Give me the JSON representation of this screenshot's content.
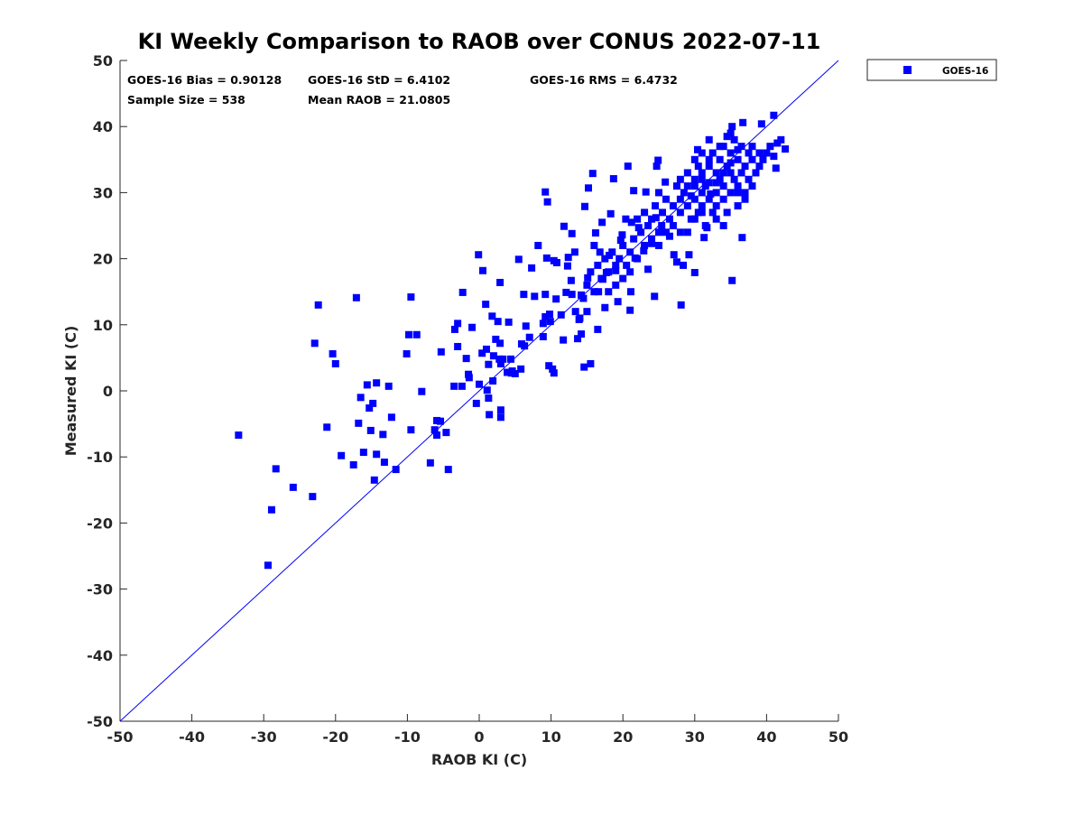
{
  "chart_data": {
    "type": "scatter",
    "title": "KI Weekly Comparison to RAOB over CONUS 2022-07-11",
    "xlabel": "RAOB KI (C)",
    "ylabel": "Measured KI (C)",
    "xlim": [
      -50,
      50
    ],
    "ylim": [
      -50,
      50
    ],
    "xticks": [
      -50,
      -40,
      -30,
      -20,
      -10,
      0,
      10,
      20,
      30,
      40,
      50
    ],
    "yticks": [
      -50,
      -40,
      -30,
      -20,
      -10,
      0,
      10,
      20,
      30,
      40,
      50
    ],
    "grid": false,
    "legend_position": "outside-top-right",
    "reference_line": "y = x",
    "colors": {
      "series": "#0000ff",
      "line": "#0000ff"
    },
    "stats": [
      "GOES-16 Bias = 0.90128",
      "GOES-16 StD = 6.4102",
      "GOES-16 RMS = 6.4732",
      "Sample Size = 538",
      "Mean RAOB = 21.0805"
    ],
    "series": [
      {
        "name": "GOES-16",
        "marker": "square",
        "points": [
          [
            -33.5,
            -6.7
          ],
          [
            -28.3,
            -11.8
          ],
          [
            -28.9,
            -18.0
          ],
          [
            -29.4,
            -26.4
          ],
          [
            -25.9,
            -14.6
          ],
          [
            -23.2,
            -16.0
          ],
          [
            -22.9,
            7.2
          ],
          [
            -22.4,
            13.0
          ],
          [
            -21.2,
            -5.5
          ],
          [
            -20.4,
            5.6
          ],
          [
            -20.0,
            4.1
          ],
          [
            -19.2,
            -9.8
          ],
          [
            -17.5,
            -11.2
          ],
          [
            -17.1,
            14.1
          ],
          [
            -16.8,
            -4.9
          ],
          [
            -16.5,
            -1.0
          ],
          [
            -16.1,
            -9.3
          ],
          [
            -15.6,
            0.9
          ],
          [
            -15.3,
            -2.6
          ],
          [
            -15.1,
            -6.0
          ],
          [
            -14.8,
            -1.9
          ],
          [
            -14.6,
            -13.5
          ],
          [
            -14.3,
            -9.6
          ],
          [
            -14.3,
            1.2
          ],
          [
            -13.4,
            -6.6
          ],
          [
            -13.2,
            -10.8
          ],
          [
            -12.6,
            0.7
          ],
          [
            -12.2,
            -4.0
          ],
          [
            -11.6,
            -11.9
          ],
          [
            -10.1,
            5.6
          ],
          [
            -9.8,
            8.5
          ],
          [
            -9.5,
            14.2
          ],
          [
            -9.5,
            -5.9
          ],
          [
            -8.7,
            8.5
          ],
          [
            -8.0,
            -0.1
          ],
          [
            -6.8,
            -10.9
          ],
          [
            -6.2,
            -5.9
          ],
          [
            -5.9,
            -6.7
          ],
          [
            -5.9,
            -4.5
          ],
          [
            -5.4,
            -4.6
          ],
          [
            -5.3,
            5.9
          ],
          [
            -4.6,
            -6.3
          ],
          [
            -4.3,
            -11.9
          ],
          [
            -3.5,
            0.7
          ],
          [
            -3.4,
            9.3
          ],
          [
            -3.0,
            10.2
          ],
          [
            -3.0,
            6.7
          ],
          [
            -2.4,
            0.7
          ],
          [
            -2.3,
            14.9
          ],
          [
            -1.8,
            4.9
          ],
          [
            -1.5,
            2.5
          ],
          [
            -1.4,
            2.0
          ],
          [
            -1.0,
            9.6
          ],
          [
            -0.4,
            -1.9
          ],
          [
            -0.1,
            20.6
          ],
          [
            0.0,
            1.0
          ],
          [
            0.4,
            5.7
          ],
          [
            0.5,
            18.2
          ],
          [
            0.9,
            13.1
          ],
          [
            1.0,
            6.3
          ],
          [
            1.1,
            0.1
          ],
          [
            1.3,
            4.0
          ],
          [
            1.3,
            -1.1
          ],
          [
            1.4,
            -3.6
          ],
          [
            1.8,
            11.3
          ],
          [
            1.9,
            1.5
          ],
          [
            2.0,
            5.3
          ],
          [
            2.3,
            7.8
          ],
          [
            2.6,
            10.5
          ],
          [
            2.8,
            4.8
          ],
          [
            2.9,
            16.4
          ],
          [
            2.9,
            7.2
          ],
          [
            3.0,
            4.1
          ],
          [
            3.0,
            -2.9
          ],
          [
            3.0,
            -4.0
          ],
          [
            3.3,
            4.8
          ],
          [
            3.9,
            2.8
          ],
          [
            4.1,
            10.4
          ],
          [
            4.5,
            2.7
          ],
          [
            4.4,
            4.8
          ],
          [
            4.6,
            3.0
          ],
          [
            5.0,
            2.6
          ],
          [
            5.5,
            19.9
          ],
          [
            5.8,
            3.3
          ],
          [
            5.9,
            7.1
          ],
          [
            6.2,
            14.6
          ],
          [
            6.3,
            6.8
          ],
          [
            6.5,
            9.8
          ],
          [
            7.0,
            8.1
          ],
          [
            7.3,
            18.6
          ],
          [
            7.7,
            14.3
          ],
          [
            8.2,
            22.0
          ],
          [
            8.9,
            10.2
          ],
          [
            8.9,
            8.2
          ],
          [
            9.2,
            11.2
          ],
          [
            9.2,
            30.1
          ],
          [
            9.2,
            14.6
          ],
          [
            9.4,
            20.1
          ],
          [
            9.5,
            28.6
          ],
          [
            9.7,
            3.8
          ],
          [
            9.8,
            11.6
          ],
          [
            9.9,
            10.5
          ],
          [
            10.2,
            3.3
          ],
          [
            10.4,
            19.7
          ],
          [
            10.4,
            2.7
          ],
          [
            10.7,
            13.9
          ],
          [
            10.8,
            19.4
          ],
          [
            11.4,
            11.5
          ],
          [
            11.7,
            7.7
          ],
          [
            11.8,
            24.9
          ],
          [
            12.1,
            14.9
          ],
          [
            12.3,
            18.9
          ],
          [
            12.4,
            20.2
          ],
          [
            12.8,
            16.7
          ],
          [
            12.9,
            23.8
          ],
          [
            12.9,
            14.6
          ],
          [
            13.3,
            21.0
          ],
          [
            13.4,
            12.0
          ],
          [
            13.7,
            7.9
          ],
          [
            13.9,
            10.8
          ],
          [
            14.2,
            14.5
          ],
          [
            14.2,
            8.6
          ],
          [
            14.6,
            3.6
          ],
          [
            14.7,
            27.9
          ],
          [
            15.1,
            17.1
          ],
          [
            15.2,
            30.7
          ],
          [
            15.5,
            4.1
          ],
          [
            15.8,
            32.9
          ],
          [
            16.2,
            23.9
          ],
          [
            16.5,
            9.3
          ],
          [
            16.6,
            15.0
          ],
          [
            16.8,
            21.0
          ],
          [
            17.1,
            25.5
          ],
          [
            17.2,
            16.9
          ],
          [
            17.5,
            12.6
          ],
          [
            17.7,
            17.9
          ],
          [
            18.1,
            20.5
          ],
          [
            18.3,
            26.8
          ],
          [
            18.7,
            32.1
          ],
          [
            19.0,
            18.2
          ],
          [
            19.3,
            13.5
          ],
          [
            19.7,
            22.8
          ],
          [
            19.9,
            23.6
          ],
          [
            20.4,
            26.0
          ],
          [
            20.7,
            34.0
          ],
          [
            21.0,
            12.2
          ],
          [
            21.1,
            15.0
          ],
          [
            21.2,
            25.5
          ],
          [
            21.5,
            30.3
          ],
          [
            21.7,
            20.1
          ],
          [
            22.2,
            24.7
          ],
          [
            22.9,
            21.2
          ],
          [
            23.2,
            30.1
          ],
          [
            23.5,
            18.4
          ],
          [
            24.0,
            22.3
          ],
          [
            24.4,
            14.3
          ],
          [
            24.6,
            26.2
          ],
          [
            24.7,
            34.0
          ],
          [
            24.9,
            34.9
          ],
          [
            25.4,
            25.0
          ],
          [
            25.9,
            31.6
          ],
          [
            26.5,
            23.4
          ],
          [
            27.1,
            20.6
          ],
          [
            27.5,
            19.5
          ],
          [
            28.1,
            13.0
          ],
          [
            28.4,
            19.0
          ],
          [
            29.2,
            20.6
          ],
          [
            30.0,
            17.9
          ],
          [
            30.4,
            36.5
          ],
          [
            31.3,
            23.2
          ],
          [
            31.7,
            24.7
          ],
          [
            32.2,
            29.8
          ],
          [
            35.2,
            40.0
          ],
          [
            35.2,
            16.7
          ],
          [
            36.6,
            23.2
          ],
          [
            36.7,
            40.6
          ],
          [
            39.3,
            40.4
          ],
          [
            41.0,
            41.7
          ],
          [
            41.3,
            33.7
          ],
          [
            42.6,
            36.6
          ],
          [
            28,
            27
          ],
          [
            28.5,
            30
          ],
          [
            29,
            31
          ],
          [
            29,
            28
          ],
          [
            29.5,
            26
          ],
          [
            30,
            29
          ],
          [
            30,
            32
          ],
          [
            30.5,
            27
          ],
          [
            30.5,
            34
          ],
          [
            31,
            30
          ],
          [
            31,
            28
          ],
          [
            31,
            33
          ],
          [
            31.5,
            31
          ],
          [
            31.5,
            25
          ],
          [
            32,
            34
          ],
          [
            32,
            29
          ],
          [
            32,
            31.5
          ],
          [
            32.5,
            27
          ],
          [
            32.5,
            36
          ],
          [
            33,
            33
          ],
          [
            33,
            30
          ],
          [
            33,
            28
          ],
          [
            33.5,
            35
          ],
          [
            33.5,
            32
          ],
          [
            34,
            37
          ],
          [
            34,
            31
          ],
          [
            34,
            29
          ],
          [
            34.5,
            34
          ],
          [
            34.5,
            27
          ],
          [
            35,
            36
          ],
          [
            35,
            33
          ],
          [
            35,
            30
          ],
          [
            35.5,
            38
          ],
          [
            35.5,
            32
          ],
          [
            36,
            35
          ],
          [
            36,
            31
          ],
          [
            36,
            28
          ],
          [
            36.5,
            37
          ],
          [
            36.5,
            33
          ],
          [
            37,
            34
          ],
          [
            37,
            30
          ],
          [
            37.5,
            36
          ],
          [
            37.5,
            32
          ],
          [
            38,
            35
          ],
          [
            38,
            37
          ],
          [
            38.5,
            33
          ],
          [
            39,
            36
          ],
          [
            39,
            34
          ],
          [
            39.5,
            35
          ],
          [
            40,
            36
          ],
          [
            40.5,
            37
          ],
          [
            41,
            35.5
          ],
          [
            41.5,
            37.5
          ],
          [
            42,
            38
          ],
          [
            31,
            36
          ],
          [
            32,
            38
          ],
          [
            33.5,
            37
          ],
          [
            34.5,
            38.5
          ],
          [
            35,
            39
          ],
          [
            30,
            31
          ],
          [
            29.5,
            29.5
          ],
          [
            28,
            29
          ],
          [
            27.5,
            31
          ],
          [
            27,
            28
          ],
          [
            26.5,
            26
          ],
          [
            26,
            29
          ],
          [
            25.5,
            27
          ],
          [
            25,
            30
          ],
          [
            25,
            24
          ],
          [
            24.5,
            28
          ],
          [
            24,
            26
          ],
          [
            24,
            23
          ],
          [
            23.5,
            25
          ],
          [
            23,
            27
          ],
          [
            23,
            22
          ],
          [
            22.5,
            24
          ],
          [
            22,
            26
          ],
          [
            22,
            20
          ],
          [
            21.5,
            23
          ],
          [
            21,
            21
          ],
          [
            21,
            18
          ],
          [
            20.5,
            19
          ],
          [
            20,
            22
          ],
          [
            20,
            17
          ],
          [
            19.5,
            20
          ],
          [
            19,
            19
          ],
          [
            19,
            16
          ],
          [
            18.5,
            21
          ],
          [
            18,
            18
          ],
          [
            18,
            15
          ],
          [
            17.5,
            20
          ],
          [
            17,
            17
          ],
          [
            16.5,
            19
          ],
          [
            16,
            15
          ],
          [
            16,
            22
          ],
          [
            15.5,
            18
          ],
          [
            15,
            16
          ],
          [
            15,
            12
          ],
          [
            14.5,
            14
          ],
          [
            14,
            11
          ],
          [
            27,
            25
          ],
          [
            28,
            24
          ],
          [
            26,
            24
          ],
          [
            25,
            22
          ],
          [
            29,
            24
          ],
          [
            30,
            26
          ],
          [
            31,
            27
          ],
          [
            33,
            26
          ],
          [
            34,
            25
          ],
          [
            36,
            30
          ],
          [
            37,
            29
          ],
          [
            38,
            31
          ],
          [
            35,
            34.5
          ],
          [
            36,
            36.5
          ],
          [
            32,
            35
          ],
          [
            33,
            31.5
          ],
          [
            34,
            33
          ],
          [
            31,
            32
          ],
          [
            30,
            35
          ],
          [
            29,
            33
          ],
          [
            28,
            32
          ]
        ]
      }
    ]
  }
}
